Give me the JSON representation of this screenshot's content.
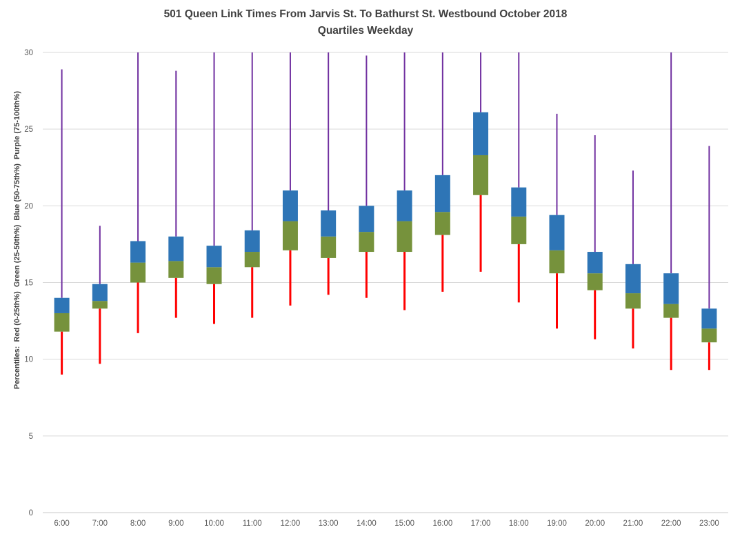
{
  "chart_data": {
    "type": "boxplot",
    "title": "501 Queen Link Times From Jarvis St. To Bathurst St. Westbound October 2018",
    "subtitle": "Quartiles Weekday",
    "xlabel": "",
    "ylabel": "Percentiles:  Red (0-25th%)  Green (25-50th%)  Blue (50-75th%)  Purple (75-100th%)",
    "ylim": [
      0,
      30
    ],
    "yticks": [
      0,
      5,
      10,
      15,
      20,
      25,
      30
    ],
    "grid": true,
    "legend_position": "none",
    "categories": [
      "6:00",
      "7:00",
      "8:00",
      "9:00",
      "10:00",
      "11:00",
      "12:00",
      "13:00",
      "14:00",
      "15:00",
      "16:00",
      "17:00",
      "18:00",
      "19:00",
      "20:00",
      "21:00",
      "22:00",
      "23:00"
    ],
    "colors": {
      "red_0_25": "#FF0000",
      "green_25_50": "#76923C",
      "blue_50_75": "#2E75B6",
      "purple_75_100": "#7030A0",
      "gridline": "#D9D9D9",
      "axis_line": "#C8C8C8",
      "tick_text": "#595959"
    },
    "points": [
      {
        "hour": "6:00",
        "p0": 9.0,
        "p25": 11.8,
        "p50": 13.0,
        "p75": 14.0,
        "p100": 28.9
      },
      {
        "hour": "7:00",
        "p0": 9.7,
        "p25": 13.3,
        "p50": 13.8,
        "p75": 14.9,
        "p100": 18.7
      },
      {
        "hour": "8:00",
        "p0": 11.7,
        "p25": 15.0,
        "p50": 16.3,
        "p75": 17.7,
        "p100": 30
      },
      {
        "hour": "9:00",
        "p0": 12.7,
        "p25": 15.3,
        "p50": 16.4,
        "p75": 18.0,
        "p100": 28.8
      },
      {
        "hour": "10:00",
        "p0": 12.3,
        "p25": 14.9,
        "p50": 16.0,
        "p75": 17.4,
        "p100": 30
      },
      {
        "hour": "11:00",
        "p0": 12.7,
        "p25": 16.0,
        "p50": 17.0,
        "p75": 18.4,
        "p100": 30
      },
      {
        "hour": "12:00",
        "p0": 13.5,
        "p25": 17.1,
        "p50": 19.0,
        "p75": 21.0,
        "p100": 30
      },
      {
        "hour": "13:00",
        "p0": 14.2,
        "p25": 16.6,
        "p50": 18.0,
        "p75": 19.7,
        "p100": 30
      },
      {
        "hour": "14:00",
        "p0": 14.0,
        "p25": 17.0,
        "p50": 18.3,
        "p75": 20.0,
        "p100": 29.8
      },
      {
        "hour": "15:00",
        "p0": 13.2,
        "p25": 17.0,
        "p50": 19.0,
        "p75": 21.0,
        "p100": 30
      },
      {
        "hour": "16:00",
        "p0": 14.4,
        "p25": 18.1,
        "p50": 19.6,
        "p75": 22.0,
        "p100": 30
      },
      {
        "hour": "17:00",
        "p0": 15.7,
        "p25": 20.7,
        "p50": 23.3,
        "p75": 26.1,
        "p100": 30
      },
      {
        "hour": "18:00",
        "p0": 13.7,
        "p25": 17.5,
        "p50": 19.3,
        "p75": 21.2,
        "p100": 30
      },
      {
        "hour": "19:00",
        "p0": 12.0,
        "p25": 15.6,
        "p50": 17.1,
        "p75": 19.4,
        "p100": 26.0
      },
      {
        "hour": "20:00",
        "p0": 11.3,
        "p25": 14.5,
        "p50": 15.6,
        "p75": 17.0,
        "p100": 24.6
      },
      {
        "hour": "21:00",
        "p0": 10.7,
        "p25": 13.3,
        "p50": 14.3,
        "p75": 16.2,
        "p100": 22.3
      },
      {
        "hour": "22:00",
        "p0": 9.3,
        "p25": 12.7,
        "p50": 13.6,
        "p75": 15.6,
        "p100": 30
      },
      {
        "hour": "23:00",
        "p0": 9.3,
        "p25": 11.1,
        "p50": 12.0,
        "p75": 13.3,
        "p100": 23.9
      }
    ]
  }
}
